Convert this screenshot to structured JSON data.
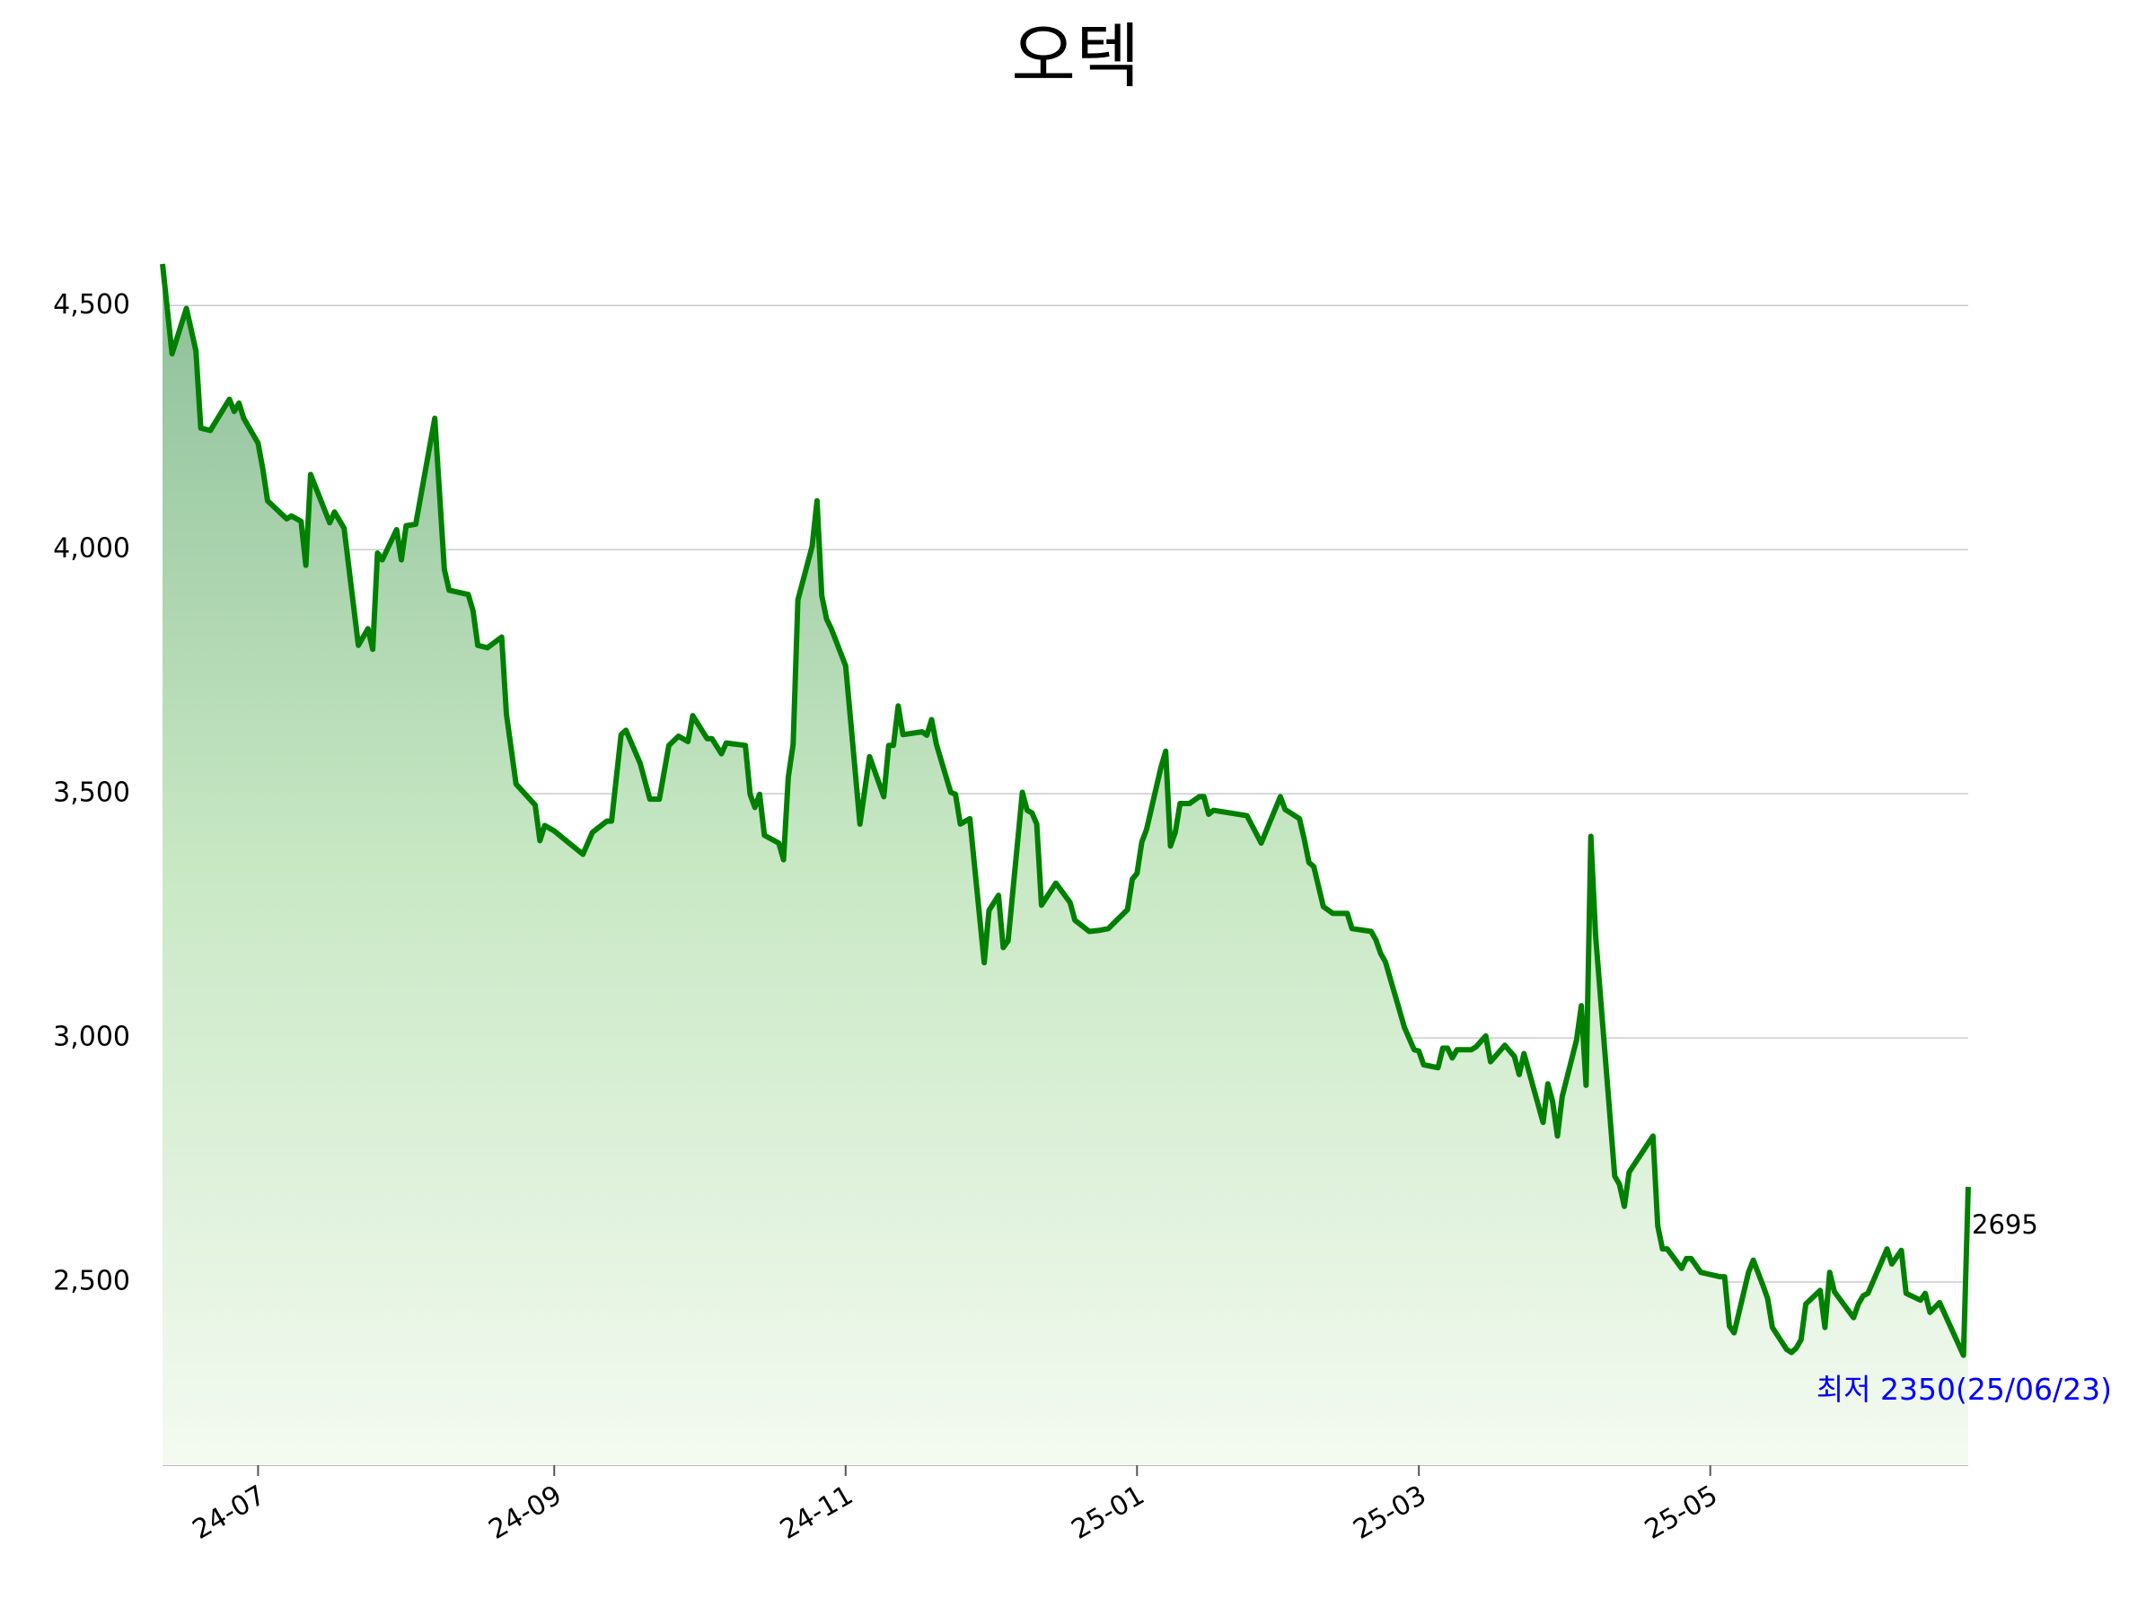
{
  "chart_data": {
    "type": "area",
    "title": "오텍",
    "color": "#008000",
    "grid": true,
    "x": [
      "24-06-11",
      "24-06-13",
      "24-06-16",
      "24-06-18",
      "24-06-19",
      "24-06-21",
      "24-06-25",
      "24-06-26",
      "24-06-27",
      "24-06-28",
      "24-07-01",
      "24-07-02",
      "24-07-03",
      "24-07-07",
      "24-07-08",
      "24-07-10",
      "24-07-11",
      "24-07-12",
      "24-07-16",
      "24-07-17",
      "24-07-19",
      "24-07-22",
      "24-07-24",
      "24-07-25",
      "24-07-26",
      "24-07-27",
      "24-07-30",
      "24-07-31",
      "24-08-01",
      "24-08-03",
      "24-08-07",
      "24-08-09",
      "24-08-10",
      "24-08-14",
      "24-08-15",
      "24-08-16",
      "24-08-18",
      "24-08-21",
      "24-08-22",
      "24-08-24",
      "24-08-28",
      "24-08-29",
      "24-08-30",
      "24-09-01",
      "24-09-07",
      "24-09-09",
      "24-09-12",
      "24-09-13",
      "24-09-15",
      "24-09-16",
      "24-09-19",
      "24-09-21",
      "24-09-23",
      "24-09-25",
      "24-09-27",
      "24-09-29",
      "24-09-30",
      "24-10-03",
      "24-10-04",
      "24-10-06",
      "24-10-07",
      "24-10-11",
      "24-10-12",
      "24-10-13",
      "24-10-14",
      "24-10-15",
      "24-10-18",
      "24-10-19",
      "24-10-20",
      "24-10-21",
      "24-10-22",
      "24-10-25",
      "24-10-26",
      "24-10-27",
      "24-10-28",
      "24-10-29",
      "24-11-01",
      "24-11-02",
      "24-11-04",
      "24-11-06",
      "24-11-09",
      "24-11-10",
      "24-11-11",
      "24-11-12",
      "24-11-13",
      "24-11-17",
      "24-11-18",
      "24-11-19",
      "24-11-20",
      "24-11-23",
      "24-11-24",
      "24-11-25",
      "24-11-27",
      "24-11-30",
      "24-12-01",
      "24-12-03",
      "24-12-04",
      "24-12-05",
      "24-12-08",
      "24-12-09",
      "24-12-10",
      "24-12-11",
      "24-12-12",
      "24-12-15",
      "24-12-18",
      "24-12-19",
      "24-12-22",
      "24-12-24",
      "24-12-26",
      "24-12-30",
      "24-12-31",
      "25-01-01",
      "25-01-02",
      "25-01-03",
      "25-01-06",
      "25-01-07",
      "25-01-08",
      "25-01-09",
      "25-01-10",
      "25-01-12",
      "25-01-14",
      "25-01-15",
      "25-01-16",
      "25-01-17",
      "25-01-24",
      "25-01-27",
      "25-01-31",
      "25-02-01",
      "25-02-04",
      "25-02-05",
      "25-02-06",
      "25-02-07",
      "25-02-09",
      "25-02-11",
      "25-02-14",
      "25-02-15",
      "25-02-19",
      "25-02-20",
      "25-02-21",
      "25-02-22",
      "25-02-26",
      "25-02-28",
      "25-03-01",
      "25-03-02",
      "25-03-05",
      "25-03-06",
      "25-03-07",
      "25-03-08",
      "25-03-09",
      "25-03-12",
      "25-03-13",
      "25-03-15",
      "25-03-16",
      "25-03-19",
      "25-03-21",
      "25-03-22",
      "25-03-23",
      "25-03-27",
      "25-03-28",
      "25-03-29",
      "25-03-30",
      "25-03-31",
      "25-04-03",
      "25-04-04",
      "25-04-05",
      "25-04-06",
      "25-04-07",
      "25-04-11",
      "25-04-12",
      "25-04-13",
      "25-04-14",
      "25-04-19",
      "25-04-20",
      "25-04-21",
      "25-04-22",
      "25-04-25",
      "25-04-26",
      "25-04-27",
      "25-04-29",
      "25-05-03",
      "25-05-04",
      "25-05-05",
      "25-05-06",
      "25-05-09",
      "25-05-10",
      "25-05-12",
      "25-05-13",
      "25-05-14",
      "25-05-17",
      "25-05-18",
      "25-05-19",
      "25-05-20",
      "25-05-21",
      "25-05-24",
      "25-05-25",
      "25-05-26",
      "25-05-27",
      "25-05-31",
      "25-06-01",
      "25-06-02",
      "25-06-03",
      "25-06-07",
      "25-06-08",
      "25-06-10",
      "25-06-11",
      "25-06-14",
      "25-06-15",
      "25-06-16",
      "25-06-18",
      "25-06-23",
      "25-06-24"
    ],
    "values": [
      4585,
      4401,
      4494,
      4407,
      4249,
      4244,
      4308,
      4283,
      4300,
      4269,
      4218,
      4165,
      4100,
      4063,
      4069,
      4058,
      3968,
      4154,
      4055,
      4077,
      4044,
      3804,
      3838,
      3796,
      3993,
      3979,
      4041,
      3979,
      4049,
      4052,
      4269,
      3959,
      3917,
      3908,
      3875,
      3804,
      3799,
      3821,
      3663,
      3520,
      3477,
      3404,
      3435,
      3424,
      3376,
      3421,
      3444,
      3444,
      3621,
      3630,
      3562,
      3489,
      3489,
      3599,
      3618,
      3607,
      3660,
      3613,
      3613,
      3582,
      3604,
      3599,
      3499,
      3472,
      3499,
      3415,
      3399,
      3365,
      3534,
      3601,
      3897,
      4007,
      4100,
      3906,
      3858,
      3838,
      3762,
      3655,
      3438,
      3576,
      3494,
      3599,
      3599,
      3680,
      3621,
      3627,
      3620,
      3652,
      3601,
      3503,
      3499,
      3438,
      3449,
      3154,
      3261,
      3292,
      3185,
      3199,
      3503,
      3466,
      3461,
      3438,
      3272,
      3317,
      3277,
      3241,
      3218,
      3220,
      3224,
      3263,
      3325,
      3337,
      3401,
      3427,
      3554,
      3587,
      3393,
      3421,
      3480,
      3480,
      3494,
      3494,
      3458,
      3466,
      3455,
      3399,
      3494,
      3468,
      3449,
      3407,
      3359,
      3351,
      3269,
      3255,
      3255,
      3224,
      3218,
      3201,
      3173,
      3156,
      3021,
      2976,
      2973,
      2945,
      2939,
      2979,
      2979,
      2959,
      2976,
      2976,
      2982,
      3004,
      2951,
      2985,
      2962,
      2925,
      2968,
      2827,
      2906,
      2869,
      2799,
      2880,
      2996,
      3066,
      2903,
      3413,
      3210,
      2717,
      2700,
      2655,
      2725,
      2799,
      2615,
      2568,
      2568,
      2528,
      2548,
      2548,
      2520,
      2511,
      2511,
      2410,
      2396,
      2520,
      2545,
      2494,
      2466,
      2407,
      2362,
      2356,
      2365,
      2382,
      2455,
      2483,
      2407,
      2520,
      2480,
      2427,
      2455,
      2472,
      2477,
      2568,
      2537,
      2565,
      2477,
      2463,
      2477,
      2438,
      2458,
      2350,
      2695
    ],
    "xlim": [
      "24-06-11",
      "25-06-24"
    ],
    "xticks": [
      {
        "value": "24-07-01",
        "label": "24-07"
      },
      {
        "value": "24-09-01",
        "label": "24-09"
      },
      {
        "value": "24-11-01",
        "label": "24-11"
      },
      {
        "value": "25-01-01",
        "label": "25-01"
      },
      {
        "value": "25-03-01",
        "label": "25-03"
      },
      {
        "value": "25-05-01",
        "label": "25-05"
      }
    ],
    "ylim": [
      2125,
      4620
    ],
    "yticks": [
      {
        "value": 2500,
        "label": "2,500"
      },
      {
        "value": 3000,
        "label": "3,000"
      },
      {
        "value": 3500,
        "label": "3,500"
      },
      {
        "value": 4000,
        "label": "4,000"
      },
      {
        "value": 4500,
        "label": "4,500"
      }
    ],
    "annotations": [
      "2695",
      "최저 2350(25/06/23)"
    ]
  }
}
